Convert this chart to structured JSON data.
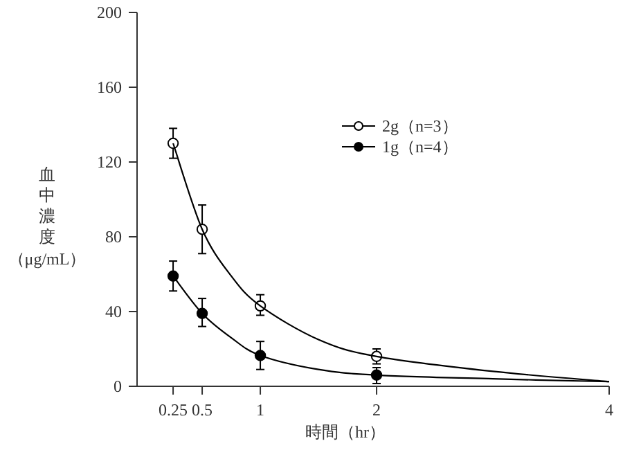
{
  "chart_data": {
    "type": "scatter",
    "xlabel": "時間（hr）",
    "ylabel": "血中濃度（μg/mL）",
    "xlim": [
      -0.06,
      4
    ],
    "ylim": [
      0,
      200
    ],
    "xticks": [
      0.25,
      0.5,
      1,
      2,
      4
    ],
    "yticks": [
      0,
      40,
      80,
      120,
      160,
      200
    ],
    "grid": false,
    "legend": "top right",
    "series": [
      {
        "name": "2g（n=3）",
        "color": "#000000",
        "marker": "circle",
        "x": [
          0.25,
          0.5,
          1,
          2
        ],
        "values": [
          130,
          84,
          43,
          16
        ],
        "errors": [
          [
            122,
            138
          ],
          [
            71,
            97
          ],
          [
            38,
            49
          ],
          [
            12,
            20
          ]
        ]
      },
      {
        "name": "1g（n=4）",
        "color": "#000000",
        "marker": "circle",
        "x": [
          0.25,
          0.5,
          1,
          2
        ],
        "values": [
          59,
          39,
          16.5,
          6
        ],
        "errors": [
          [
            51,
            67
          ],
          [
            32,
            47
          ],
          [
            9,
            24
          ],
          [
            1.5,
            10
          ]
        ]
      },
      {
        "type": "line",
        "color": "#000000",
        "x": [
          0.25,
          0.5,
          0.75,
          1,
          1.5,
          2,
          3,
          4
        ],
        "values": [
          130,
          84,
          59,
          43,
          25,
          16,
          8,
          2.5
        ]
      },
      {
        "type": "line",
        "color": "#000000",
        "x": [
          0.25,
          0.5,
          0.75,
          1,
          1.5,
          2,
          3,
          4
        ],
        "values": [
          59,
          39,
          26,
          16.5,
          9,
          6,
          4,
          2.5
        ]
      }
    ]
  }
}
